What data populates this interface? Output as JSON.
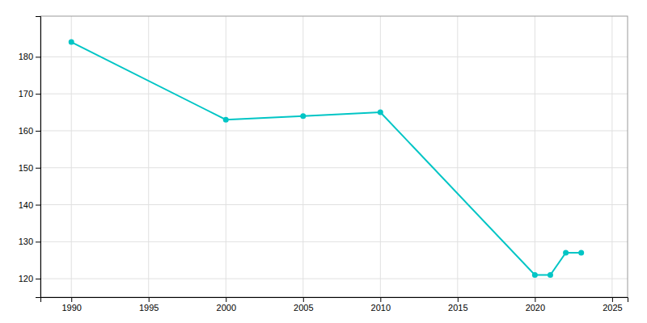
{
  "chart_data": {
    "type": "line",
    "x": [
      1990,
      2000,
      2005,
      2010,
      2020,
      2021,
      2022,
      2023
    ],
    "values": [
      184,
      163,
      164,
      165,
      121,
      121,
      127,
      127
    ],
    "color": "#00C5C5",
    "marker": "circle",
    "xlim": [
      1988,
      2026
    ],
    "ylim": [
      115,
      191
    ],
    "xticks": [
      1990,
      1995,
      2000,
      2005,
      2010,
      2015,
      2020,
      2025
    ],
    "yticks": [
      120,
      130,
      140,
      150,
      160,
      170,
      180
    ],
    "grid": true
  }
}
